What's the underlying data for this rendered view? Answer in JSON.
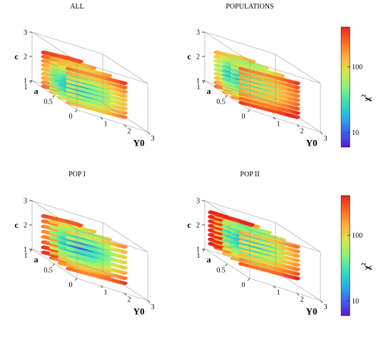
{
  "colors": {
    "colormap": "rainbow",
    "stops": [
      "#5a18d8",
      "#3d63ee",
      "#27b3e8",
      "#38e0b6",
      "#88f57c",
      "#d7e64a",
      "#ffb13a",
      "#ff6a22",
      "#ee2418"
    ],
    "box": "#9a9a9a",
    "text": "#000000"
  },
  "chart_data": [
    {
      "type": "scatter3d",
      "title": "ALL",
      "xlabel": "Υ0",
      "ylabel": "a",
      "zlabel": "c",
      "xlim": [
        0,
        3
      ],
      "ylim": [
        0,
        1.2
      ],
      "zlim": [
        1,
        3
      ],
      "x_ticks": [
        "1",
        "2",
        "3"
      ],
      "y_ticks": [
        "0",
        "0.5",
        "1"
      ],
      "z_ticks": [
        "1",
        "2",
        "3"
      ],
      "grid": false,
      "surface": {
        "a_values": [
          0.6,
          1.0,
          1.4,
          1.8
        ],
        "c_layers": 9,
        "c_range": [
          1.0,
          2.4
        ],
        "chi2_range": [
          6,
          400
        ],
        "low_chi2_center": {
          "a": 1.1,
          "c": 1.6
        }
      }
    },
    {
      "type": "scatter3d",
      "title": "POPULATIONS",
      "xlabel": "Υ0",
      "ylabel": "a",
      "zlabel": "c",
      "xlim": [
        0,
        3
      ],
      "ylim": [
        0,
        1.2
      ],
      "zlim": [
        1,
        3
      ],
      "x_ticks": [
        "1",
        "2",
        "3"
      ],
      "y_ticks": [
        "0",
        "0.5",
        "1"
      ],
      "z_ticks": [
        "1",
        "2",
        "3"
      ],
      "grid": false,
      "surface": {
        "a_values": [
          0.6,
          1.0,
          1.4,
          1.8
        ],
        "c_layers": 9,
        "c_range": [
          1.0,
          2.4
        ],
        "chi2_range": [
          6,
          400
        ],
        "low_chi2_center": {
          "a": 1.3,
          "c": 1.8
        }
      }
    },
    {
      "type": "scatter3d",
      "title": "POP I",
      "xlabel": "Υ0",
      "ylabel": "a",
      "zlabel": "c",
      "xlim": [
        0,
        3
      ],
      "ylim": [
        0,
        1.2
      ],
      "zlim": [
        1,
        3
      ],
      "x_ticks": [
        "1",
        "2",
        "3"
      ],
      "y_ticks": [
        "0",
        "0.5",
        "1"
      ],
      "z_ticks": [
        "1",
        "2",
        "3"
      ],
      "grid": false,
      "surface": {
        "a_values": [
          0.6,
          1.0,
          1.4,
          1.8
        ],
        "c_layers": 8,
        "c_range": [
          1.1,
          2.6
        ],
        "chi2_range": [
          6,
          400
        ],
        "low_chi2_center": {
          "a": 1.0,
          "c": 2.0
        }
      }
    },
    {
      "type": "scatter3d",
      "title": "POP II",
      "xlabel": "Υ0",
      "ylabel": "a",
      "zlabel": "c",
      "xlim": [
        0,
        3
      ],
      "ylim": [
        0,
        1.2
      ],
      "zlim": [
        1,
        3
      ],
      "x_ticks": [
        "1",
        "2",
        "3"
      ],
      "y_ticks": [
        "0",
        "0.5",
        "1"
      ],
      "z_ticks": [
        "1",
        "2",
        "3"
      ],
      "grid": false,
      "surface": {
        "a_values": [
          0.6,
          1.0,
          1.4,
          1.8,
          2.2
        ],
        "c_layers": 8,
        "c_range": [
          1.3,
          2.6
        ],
        "chi2_range": [
          6,
          400
        ],
        "low_chi2_center": {
          "a": 1.2,
          "c": 2.1
        }
      }
    }
  ],
  "colorbars": [
    {
      "label": "χ",
      "superscript": "2",
      "ticks": [
        "10",
        "100"
      ],
      "scale": "log",
      "range": [
        6,
        400
      ]
    },
    {
      "label": "χ",
      "superscript": "2",
      "ticks": [
        "10",
        "100"
      ],
      "scale": "log",
      "range": [
        6,
        400
      ]
    }
  ]
}
